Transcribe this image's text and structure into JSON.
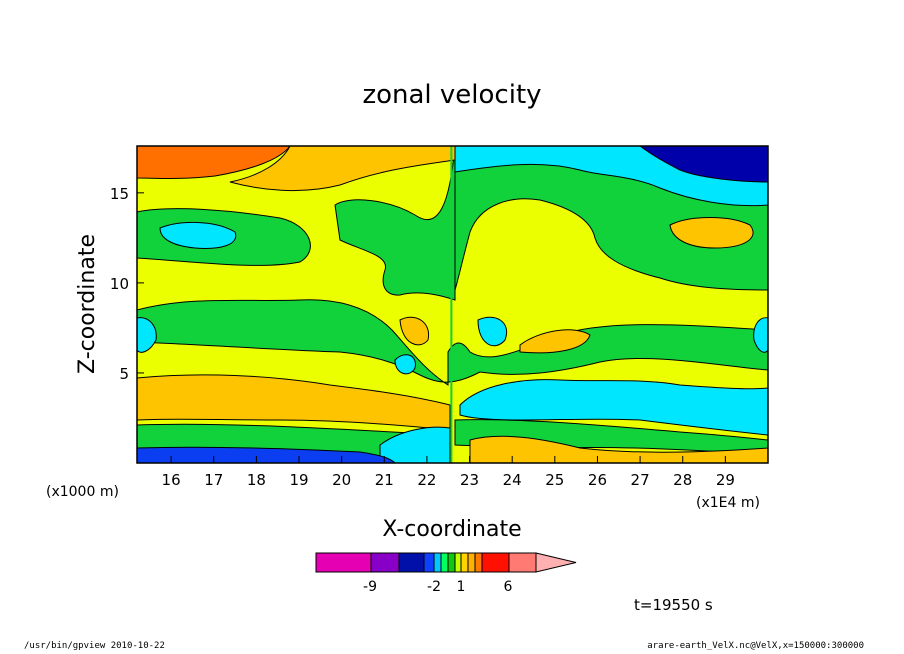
{
  "chart_data": {
    "type": "heatmap",
    "title": "zonal velocity",
    "xlabel": "X-coordinate",
    "ylabel": "Z-coordinate",
    "x_scale_label": "(x1E4 m)",
    "y_scale_label": "(x1000 m)",
    "xlim": [
      15.2,
      30.0
    ],
    "ylim": [
      0.0,
      17.6
    ],
    "x_ticks": [
      "16",
      "17",
      "18",
      "19",
      "20",
      "21",
      "22",
      "23",
      "24",
      "25",
      "26",
      "27",
      "28",
      "29"
    ],
    "y_ticks": [
      "5",
      "10",
      "15"
    ],
    "time_label": "t=19550 s",
    "colorbar": {
      "tick_labels": [
        "-9",
        "-2",
        "1",
        "6"
      ],
      "colors": [
        "#e600b4",
        "#8800c8",
        "#0010a8",
        "#1040ff",
        "#00c8ff",
        "#00ff60",
        "#10c810",
        "#c8ff00",
        "#ffd200",
        "#ffb000",
        "#ff7800",
        "#ff1000",
        "#ff7a72",
        "#ffb0b0"
      ]
    },
    "field": {
      "description_levels": "values increase: navy < blue < cyan < green < yellow < light-orange < orange",
      "palette": {
        "navy": "#0000aa",
        "blue": "#0a3ef0",
        "cyan": "#00e6ff",
        "green": "#12d23c",
        "yellow": "#ebff00",
        "lightorange": "#ffc400",
        "orange": "#ff7000"
      }
    }
  },
  "footer": {
    "left": "/usr/bin/gpview   2010-10-22",
    "right": "arare-earth_VelX.nc@VelX,x=150000:300000"
  }
}
